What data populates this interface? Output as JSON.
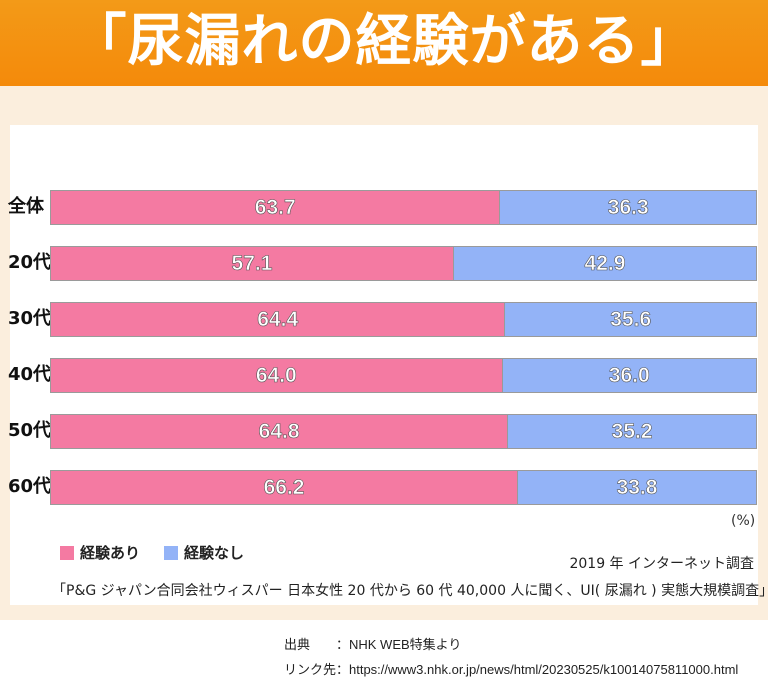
{
  "title": "「尿漏れの経験がある」",
  "chart_data": {
    "type": "bar",
    "stacked": true,
    "orientation": "horizontal",
    "categories": [
      "全体",
      "20代",
      "30代",
      "40代",
      "50代",
      "60代"
    ],
    "series": [
      {
        "name": "経験あり",
        "values": [
          63.7,
          57.1,
          64.4,
          64.0,
          64.8,
          66.2
        ],
        "labels": [
          "63.7",
          "57.1",
          "64.4",
          "64.0",
          "64.8",
          "66.2"
        ],
        "color": "#f47aa2"
      },
      {
        "name": "経験なし",
        "values": [
          36.3,
          42.9,
          35.6,
          36.0,
          35.2,
          33.8
        ],
        "labels": [
          "36.3",
          "42.9",
          "35.6",
          "36.0",
          "35.2",
          "33.8"
        ],
        "color": "#93b3f7"
      }
    ],
    "unit": "(%)",
    "xlim": [
      0,
      100
    ]
  },
  "survey_note": "2019 年 インターネット調査",
  "source_line": "「P&G ジャパン合同会社ウィスパー 日本女性 20 代から 60 代 40,000 人に聞く、UI( 尿漏れ ) 実態大規模調査」",
  "footer": {
    "source": "出典　　：NHK WEB特集より",
    "link": "リンク先：https://www3.nhk.or.jp/news/html/20230525/k10014075811000.html"
  }
}
